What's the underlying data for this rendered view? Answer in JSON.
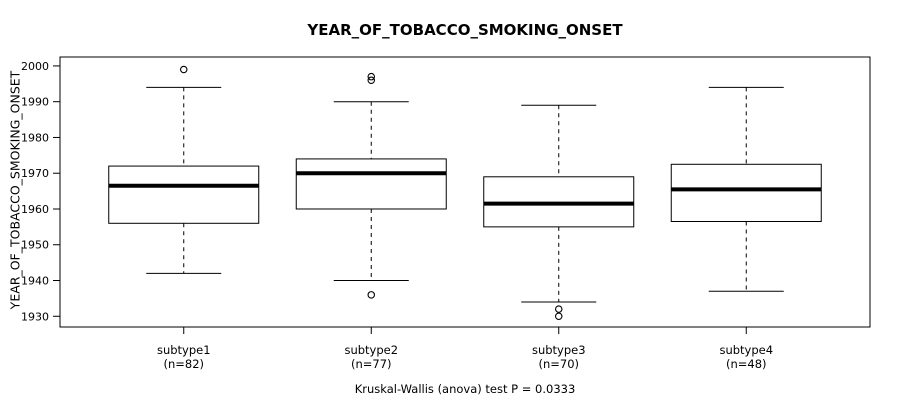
{
  "page": {
    "background": "#ffffff"
  },
  "chart_data": {
    "type": "boxplot",
    "title": "YEAR_OF_TOBACCO_SMOKING_ONSET",
    "ylabel": "YEAR_OF_TOBACCO_SMOKING_ONSET",
    "xlabel": "",
    "caption": "Kruskal-Wallis (anova) test P = 0.0333",
    "ylim": [
      1927,
      2002.5
    ],
    "yticks": [
      1930,
      1940,
      1950,
      1960,
      1970,
      1980,
      1990,
      2000
    ],
    "grid": false,
    "legend": "none",
    "categories": [
      "subtype1",
      "subtype2",
      "subtype3",
      "subtype4"
    ],
    "category_sublabels": [
      "(n=82)",
      "(n=77)",
      "(n=70)",
      "(n=48)"
    ],
    "boxes": [
      {
        "category": "subtype1",
        "n": 82,
        "n_label": "(n=82)",
        "whisker_low": 1942,
        "q1": 1956,
        "median": 1966.5,
        "q3": 1972,
        "whisker_high": 1994,
        "outliers": [
          1999
        ]
      },
      {
        "category": "subtype2",
        "n": 77,
        "n_label": "(n=77)",
        "whisker_low": 1940,
        "q1": 1960,
        "median": 1970,
        "q3": 1974,
        "whisker_high": 1990,
        "outliers": [
          1997,
          1996,
          1936
        ]
      },
      {
        "category": "subtype3",
        "n": 70,
        "n_label": "(n=70)",
        "whisker_low": 1934,
        "q1": 1955,
        "median": 1961.5,
        "q3": 1969,
        "whisker_high": 1989,
        "outliers": [
          1932,
          1930
        ]
      },
      {
        "category": "subtype4",
        "n": 48,
        "n_label": "(n=48)",
        "whisker_low": 1937,
        "q1": 1956.5,
        "median": 1965.5,
        "q3": 1972.5,
        "whisker_high": 1994,
        "outliers": []
      }
    ],
    "style": {
      "stroke_color": "#000000",
      "box_fill": "#ffffff",
      "median_linewidth": 4,
      "whisker_linestyle": "dashed",
      "outlier_marker": "open-circle"
    }
  }
}
